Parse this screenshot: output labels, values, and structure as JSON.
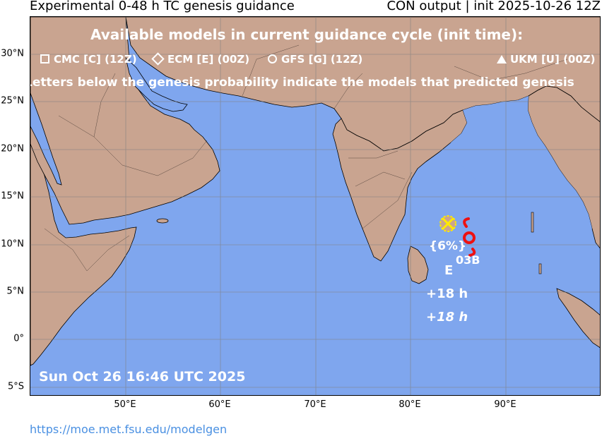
{
  "header": {
    "title_left": "Experimental 0-48 h TC genesis guidance",
    "title_right": "CON output | init 2025-10-26 12Z"
  },
  "legend": {
    "heading": "Available models in current guidance cycle (init time):",
    "models": [
      {
        "symbol": "square-icon",
        "label": "CMC [C] (12Z)"
      },
      {
        "symbol": "diamond-icon",
        "label": "ECM [E] (00Z)"
      },
      {
        "symbol": "circle-icon",
        "label": "GFS [G] (12Z)"
      },
      {
        "symbol": "triangle-icon",
        "label": "UKM [U] (00Z)"
      }
    ],
    "note": "Letters below the genesis probability indicate the models that predicted genesis"
  },
  "axes": {
    "lat_labels": [
      "30°N",
      "25°N",
      "20°N",
      "15°N",
      "10°N",
      "5°N",
      "0°",
      "5°S"
    ],
    "lon_labels": [
      "50°E",
      "60°E",
      "70°E",
      "80°E",
      "90°E"
    ]
  },
  "system": {
    "storm_name": "03B",
    "probability": "{6%}",
    "models": "E",
    "lead_time": "+18 h",
    "lead_time_italic": "+18 h"
  },
  "colors": {
    "ocean": "#7fa6ee",
    "land": "#c9a490",
    "storm_symbol": "#ee1111",
    "marker": "#ffea00"
  },
  "timestamp": "Sun Oct 26 16:46 UTC 2025",
  "footer": {
    "url": "https://moe.met.fsu.edu/modelgen"
  }
}
